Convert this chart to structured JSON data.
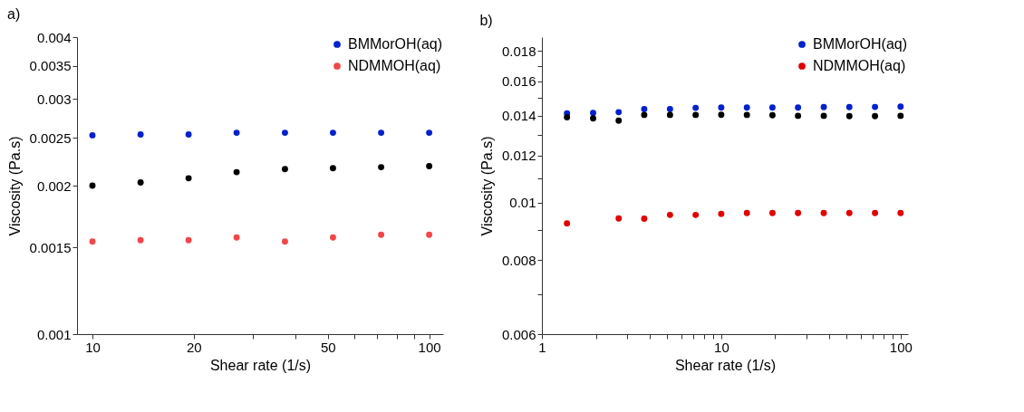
{
  "chart_data": [
    {
      "type": "scatter",
      "title": "a)",
      "xlabel": "Shear rate (1/s)",
      "ylabel": "Viscosity (Pa.s)",
      "log": "xy",
      "marker": "circle",
      "legend": "top right",
      "xlim": [
        9,
        110
      ],
      "ylim": [
        0.001,
        0.004
      ],
      "xticks": [
        10,
        20,
        {
          "value": 30,
          "label": null
        },
        {
          "value": 40,
          "label": null
        },
        50,
        {
          "value": 60,
          "label": null
        },
        {
          "value": 70,
          "label": null
        },
        {
          "value": 80,
          "label": null
        },
        {
          "value": 90,
          "label": null
        },
        100
      ],
      "yticks": [
        0.001,
        0.0015,
        0.002,
        0.0025,
        0.003,
        0.0035,
        0.004
      ],
      "x": [
        10,
        13.9,
        19.3,
        26.8,
        37.3,
        51.8,
        72,
        100
      ],
      "series": [
        {
          "name": "BMMorOH(aq)",
          "color": "#0022cc",
          "values": [
            0.00253,
            0.00254,
            0.00254,
            0.00256,
            0.00256,
            0.00256,
            0.00256,
            0.00256
          ]
        },
        {
          "color": "#000000",
          "values": [
            0.002,
            0.00203,
            0.00207,
            0.00213,
            0.00216,
            0.00217,
            0.00218,
            0.00219
          ]
        },
        {
          "name": "NDMMOH(aq)",
          "color": "#f04848",
          "values": [
            0.00154,
            0.00155,
            0.00155,
            0.00157,
            0.00154,
            0.00157,
            0.00159,
            0.00159
          ]
        }
      ]
    },
    {
      "type": "scatter",
      "title": "b)",
      "xlabel": "Shear rate (1/s)",
      "ylabel": "Viscosity (Pa.s)",
      "log": "xy",
      "marker": "circle",
      "legend": "top right",
      "xlim": [
        1,
        110
      ],
      "ylim": [
        0.006,
        0.019
      ],
      "xticks": [
        1,
        {
          "value": 2,
          "label": null
        },
        {
          "value": 3,
          "label": null
        },
        {
          "value": 4,
          "label": null
        },
        {
          "value": 5,
          "label": null
        },
        {
          "value": 6,
          "label": null
        },
        {
          "value": 7,
          "label": null
        },
        {
          "value": 8,
          "label": null
        },
        {
          "value": 9,
          "label": null
        },
        10,
        {
          "value": 20,
          "label": null
        },
        {
          "value": 30,
          "label": null
        },
        {
          "value": 40,
          "label": null
        },
        {
          "value": 50,
          "label": null
        },
        {
          "value": 60,
          "label": null
        },
        {
          "value": 70,
          "label": null
        },
        {
          "value": 80,
          "label": null
        },
        {
          "value": 90,
          "label": null
        },
        100
      ],
      "yticks": [
        0.006,
        {
          "value": 0.007,
          "label": null
        },
        0.008,
        {
          "value": 0.009,
          "label": null
        },
        0.01,
        {
          "value": 0.011,
          "label": null
        },
        0.012,
        {
          "value": 0.013,
          "label": null
        },
        0.014,
        {
          "value": 0.015,
          "label": null
        },
        0.016,
        {
          "value": 0.017,
          "label": null
        },
        0.018
      ],
      "x": [
        1.38,
        1.93,
        2.68,
        3.72,
        5.18,
        7.2,
        10,
        13.9,
        19.3,
        26.8,
        37.3,
        51.8,
        72,
        100
      ],
      "series": [
        {
          "name": "BMMorOH(aq)",
          "color": "#0022cc",
          "values": [
            0.01413,
            0.01416,
            0.0142,
            0.01437,
            0.01437,
            0.01444,
            0.01446,
            0.01446,
            0.01446,
            0.01446,
            0.01448,
            0.01448,
            0.01449,
            0.01451
          ]
        },
        {
          "color": "#000000",
          "values": [
            0.01392,
            0.01386,
            0.01374,
            0.01405,
            0.01405,
            0.01405,
            0.01406,
            0.01405,
            0.01403,
            0.014,
            0.014,
            0.01398,
            0.01398,
            0.014
          ]
        },
        {
          "name": "NDMMOH(aq)",
          "color": "#e00000",
          "values": [
            0.00922,
            null,
            0.0094,
            0.00939,
            0.00953,
            0.00953,
            0.00957,
            0.0096,
            0.0096,
            0.0096,
            0.0096,
            0.0096,
            0.0096,
            0.0096
          ]
        }
      ]
    }
  ]
}
